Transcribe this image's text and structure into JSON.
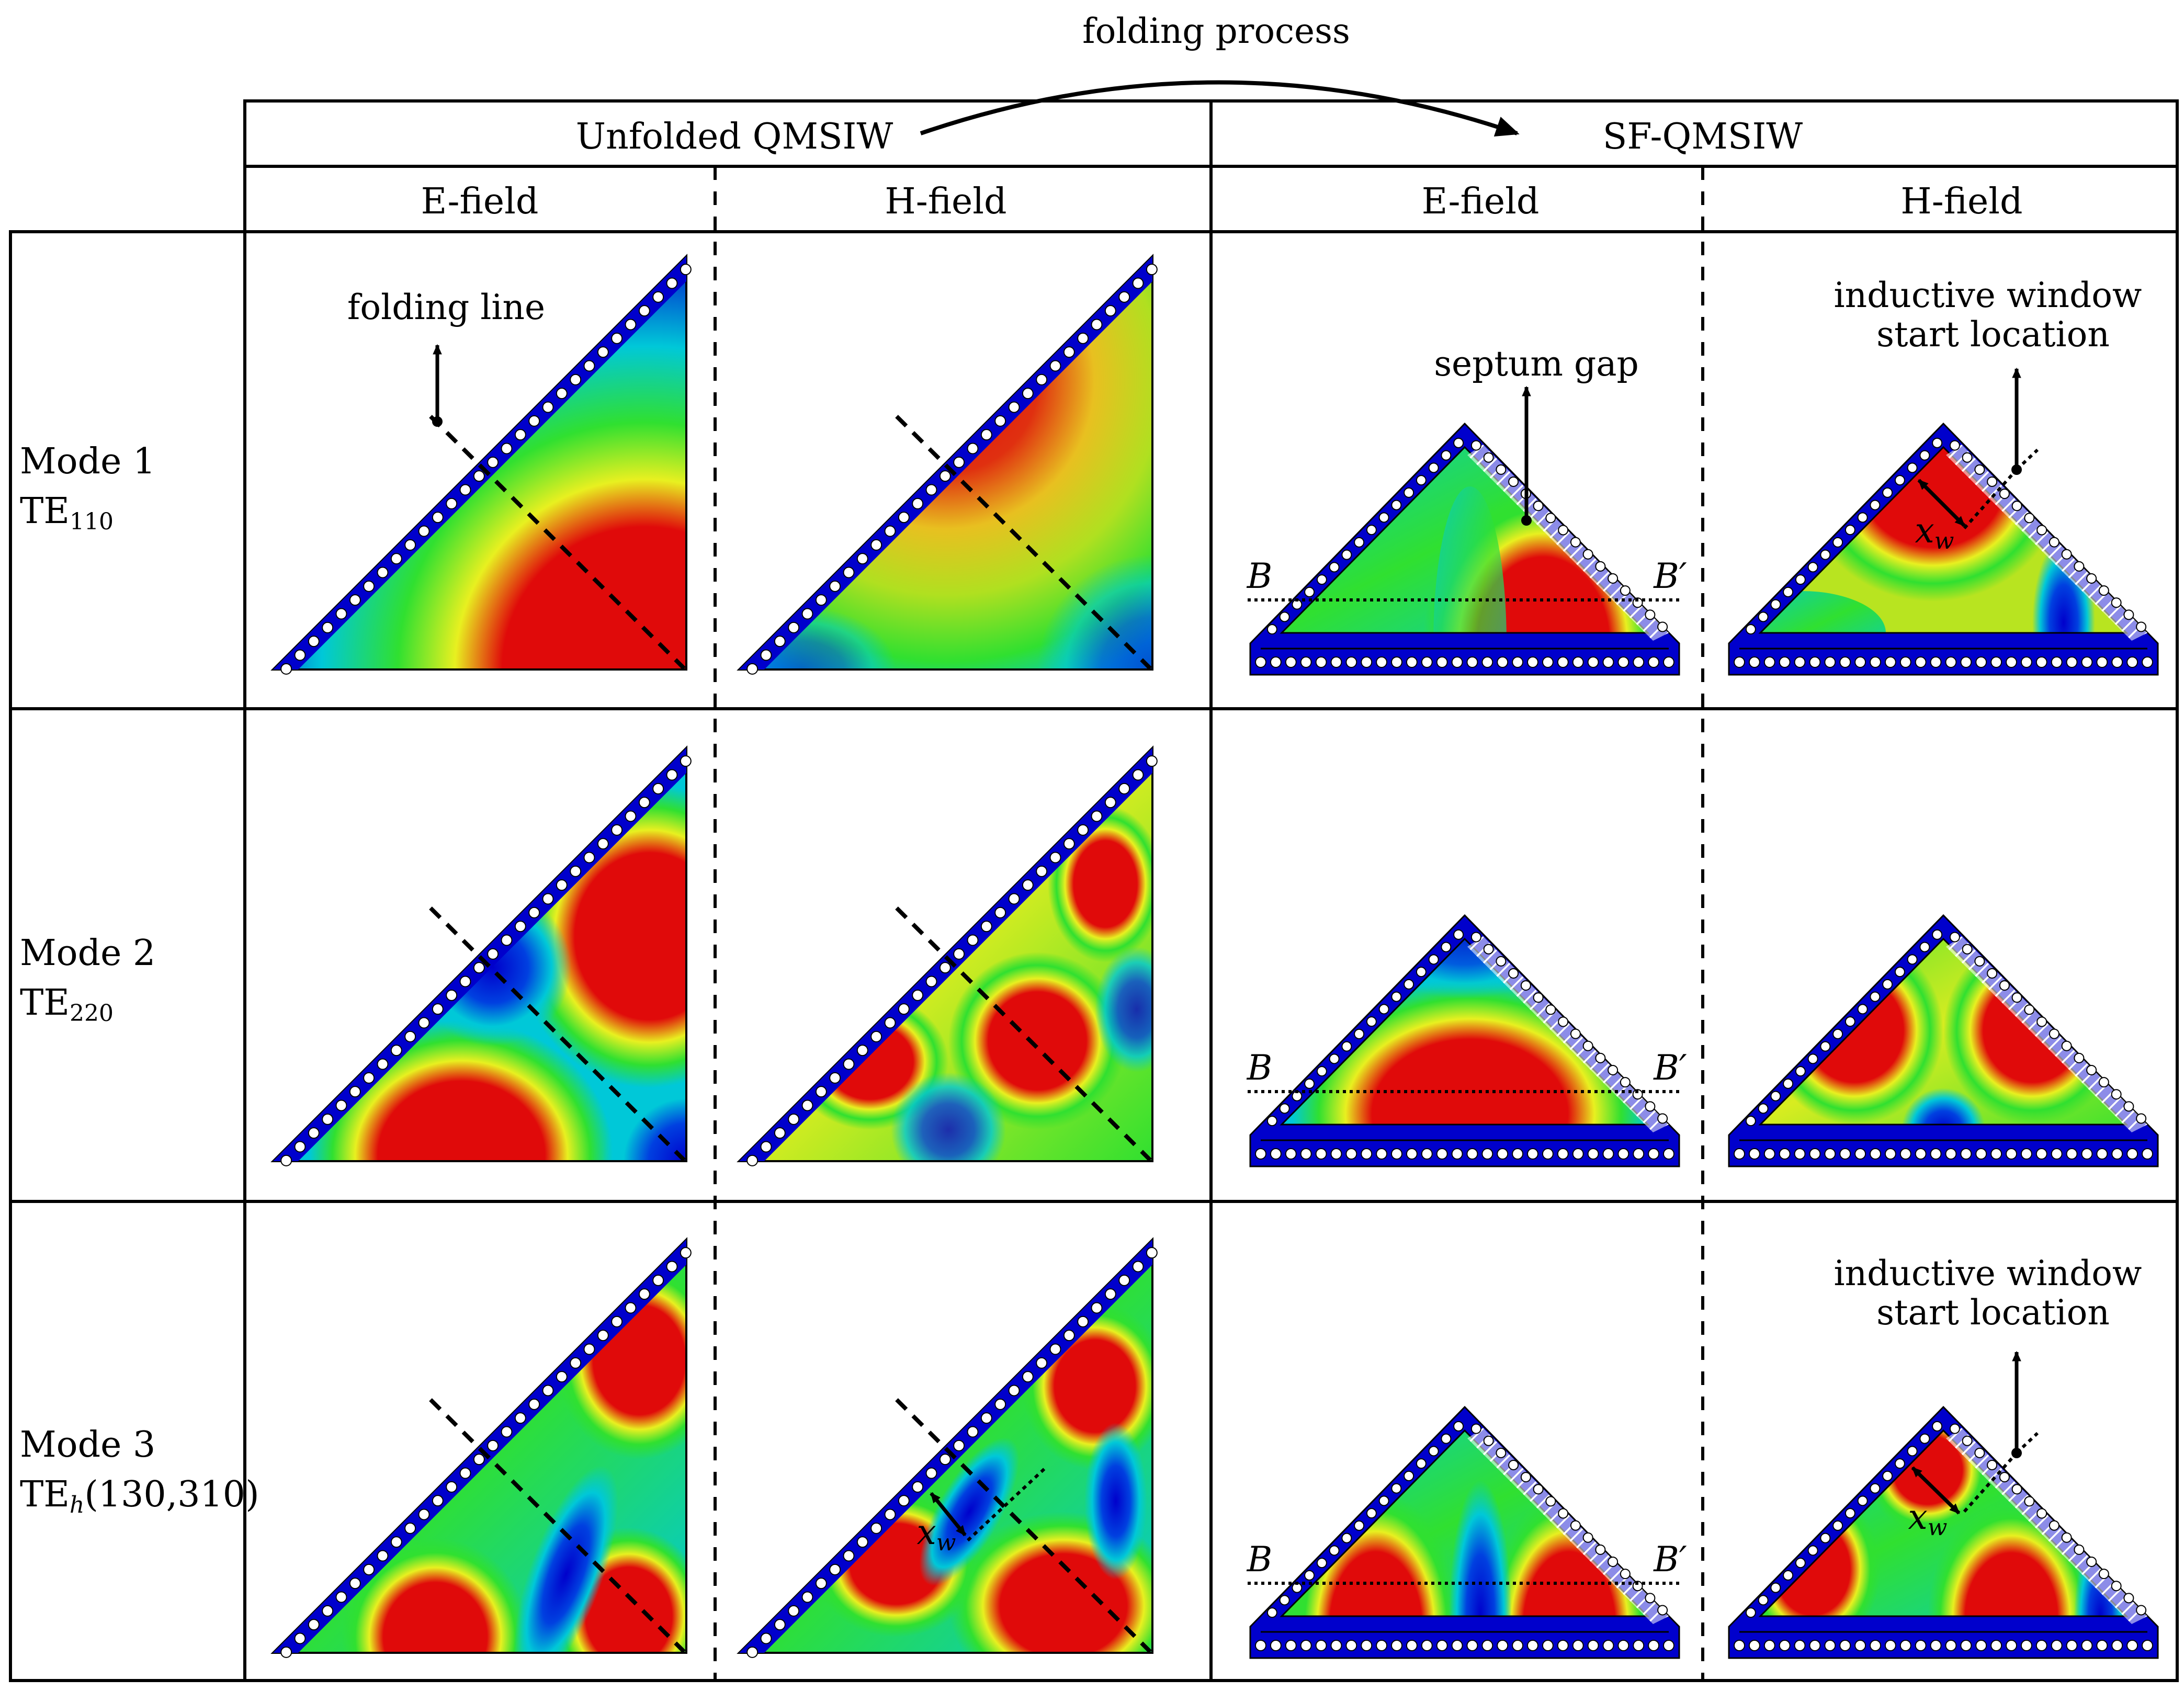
{
  "figure": {
    "top_annotation": "folding process",
    "groups": {
      "unfolded": "Unfolded QMSIW",
      "folded": "SF-QMSIW"
    },
    "columns": [
      "E-field",
      "H-field",
      "E-field",
      "H-field"
    ],
    "rows": [
      {
        "mode": "Mode 1",
        "te_base": "TE",
        "te_sub": "110",
        "te_tail": ""
      },
      {
        "mode": "Mode 2",
        "te_base": "TE",
        "te_sub": "220",
        "te_tail": ""
      },
      {
        "mode": "Mode 3",
        "te_base": "TE",
        "te_sub": "h",
        "te_tail": "(130,310)"
      }
    ],
    "annotations": {
      "folding_line": "folding line",
      "septum_gap": "septum gap",
      "inductive_window_1": "inductive window",
      "inductive_window_2": "start location",
      "cut_B": "B",
      "cut_Bprime": "B′",
      "xw_x": "x",
      "xw_sub": "w"
    },
    "colorscale": {
      "low": "#0000cc",
      "cyan": "#00c8d8",
      "green": "#30e030",
      "yellow": "#e8f020",
      "high": "#e00a0a"
    }
  }
}
